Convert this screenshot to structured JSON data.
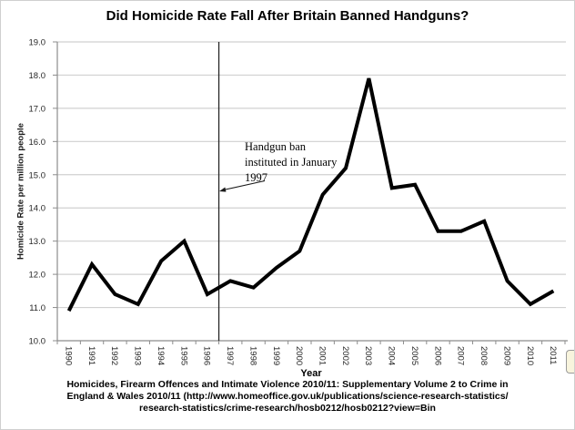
{
  "chart_data": {
    "type": "line",
    "title": "Did Homicide Rate Fall After Britain Banned Handguns?",
    "xlabel": "Year",
    "ylabel": "Homicide Rate per million people",
    "categories": [
      "1990",
      "1991",
      "1992",
      "1993",
      "1994",
      "1995",
      "1996",
      "1997",
      "1998",
      "1999",
      "2000",
      "2001",
      "2002",
      "2003",
      "2004",
      "2005",
      "2006",
      "2007",
      "2008",
      "2009",
      "2010",
      "2011"
    ],
    "values": [
      10.9,
      12.3,
      11.4,
      11.1,
      12.4,
      13.0,
      11.4,
      11.8,
      11.6,
      12.2,
      12.7,
      14.4,
      15.2,
      17.9,
      14.6,
      14.7,
      13.3,
      13.3,
      13.6,
      11.8,
      11.1,
      11.5
    ],
    "ylim": [
      10.0,
      19.0
    ],
    "y_tick_step": 1.0,
    "y_tick_decimals": 1,
    "grid": "horizontal",
    "legend": "none",
    "reference_line": {
      "label": "Handgun ban instituted in January 1997",
      "after_category": "1996",
      "orientation": "vertical"
    }
  },
  "annotation": {
    "line1": "Handgun ban",
    "line2": "instituted in January",
    "line3": "1997"
  },
  "caption": {
    "line1": "Homicides, Firearm Offences and Intimate Violence 2010/11: Supplementary Volume 2 to Crime in",
    "line2": "England & Wales 2010/11 (http://www.homeoffice.gov.uk/publications/science-research-statistics/",
    "line3": "research-statistics/crime-research/hosb0212/hosb0212?view=Bin"
  },
  "colors": {
    "series_line": "#000000",
    "gridline": "#d0d0d0",
    "axis": "#8c8c8c",
    "ban_line": "#262626",
    "tick_label": "#262626",
    "arrow": "#1a1a1a"
  }
}
